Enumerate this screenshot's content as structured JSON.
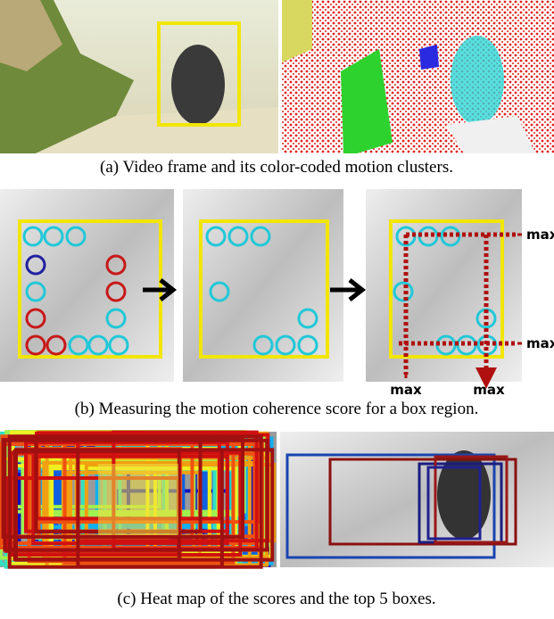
{
  "panel_a": {
    "caption": "(a) Video frame and its color-coded motion clusters."
  },
  "panel_b": {
    "caption": "(b) Measuring the motion coherence score for a box region.",
    "annotations": [
      "max",
      "max",
      "max",
      "max"
    ]
  },
  "panel_c": {
    "caption": "(c) Heat map of the scores and the top 5 boxes."
  }
}
